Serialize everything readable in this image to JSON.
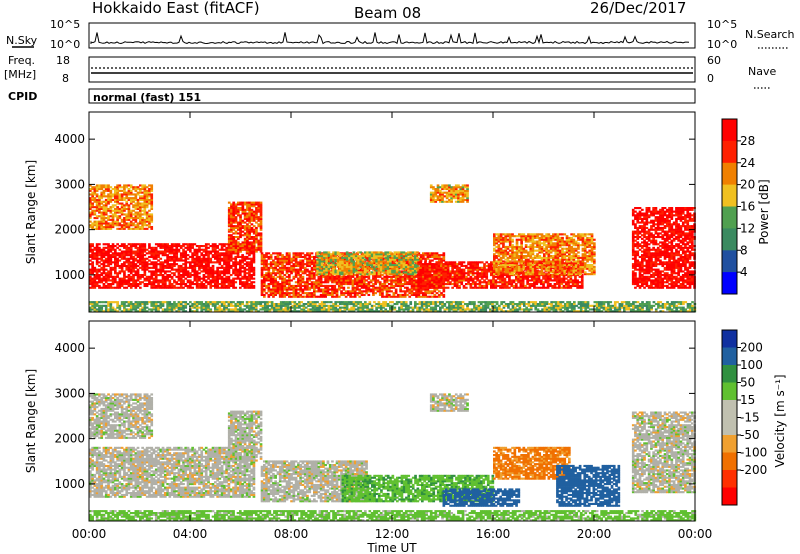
{
  "header": {
    "station": "Hokkaido East (fitACF)",
    "beam": "Beam 08",
    "date": "26/Dec/2017"
  },
  "status_panels": {
    "nsky_label": "N.Sky",
    "nsearch_label": "N.Search",
    "noise_ticks": [
      "10^5",
      "10^0"
    ],
    "freq_label": "Freq.",
    "freq_unit": "[MHz]",
    "freq_ticks": [
      "18",
      "8"
    ],
    "nave_label": "Nave",
    "nave_ticks": [
      "60",
      "0"
    ],
    "cpid_label": "CPID",
    "cpid_value": "normal (fast) 151"
  },
  "colors": {
    "power_scale": [
      "#0000ff",
      "#2050a0",
      "#3a8a60",
      "#50a050",
      "#f0c020",
      "#f08000",
      "#ff2000",
      "#ff0000"
    ],
    "velocity_scale": [
      "#1030a0",
      "#2060a0",
      "#309040",
      "#60c030",
      "#c0c0b0",
      "#c0c0b0",
      "#f0a030",
      "#f07000",
      "#ff3000",
      "#ff0000"
    ],
    "ground_scatter": "#b0b0a8"
  },
  "chart_data": [
    {
      "type": "heatmap",
      "panel": "power",
      "ylabel": "Slant Range [km]",
      "ylim": [
        180,
        4600
      ],
      "yticks": [
        "1000",
        "2000",
        "3000",
        "4000"
      ],
      "xticks": [
        "00:00",
        "04:00",
        "08:00",
        "12:00",
        "16:00",
        "20:00",
        "00:00"
      ],
      "colorbar_label": "Power [dB]",
      "colorbar_ticks": [
        "4",
        "8",
        "12",
        "16",
        "20",
        "24",
        "28"
      ],
      "regions": [
        {
          "t0": 0.0,
          "t1": 6.5,
          "r0": 700,
          "r1": 1700,
          "value_db": 30
        },
        {
          "t0": 0.0,
          "t1": 2.5,
          "r0": 2000,
          "r1": 3000,
          "value_db": 22
        },
        {
          "t0": 5.5,
          "t1": 6.8,
          "r0": 1500,
          "r1": 2600,
          "value_db": 26
        },
        {
          "t0": 6.8,
          "t1": 14.0,
          "r0": 500,
          "r1": 1500,
          "value_db": 26
        },
        {
          "t0": 9.0,
          "t1": 13.0,
          "r0": 1000,
          "r1": 1500,
          "value_db": 18
        },
        {
          "t0": 13.0,
          "t1": 19.5,
          "r0": 700,
          "r1": 1300,
          "value_db": 28
        },
        {
          "t0": 16.0,
          "t1": 20.0,
          "r0": 1000,
          "r1": 1900,
          "value_db": 22
        },
        {
          "t0": 13.5,
          "t1": 15.0,
          "r0": 2600,
          "r1": 3000,
          "value_db": 20
        },
        {
          "t0": 21.5,
          "t1": 24.0,
          "r0": 700,
          "r1": 2500,
          "value_db": 30
        },
        {
          "t0": 0.0,
          "t1": 24.0,
          "r0": 180,
          "r1": 400,
          "value_db": 14
        }
      ]
    },
    {
      "type": "heatmap",
      "panel": "velocity",
      "ylabel": "Slant Range [km]",
      "ylim": [
        180,
        4600
      ],
      "yticks": [
        "1000",
        "2000",
        "3000",
        "4000"
      ],
      "xticks": [
        "00:00",
        "04:00",
        "08:00",
        "12:00",
        "16:00",
        "20:00",
        "00:00"
      ],
      "xlabel": "Time UT",
      "colorbar_label": "Velocity [m s⁻¹]",
      "colorbar_ticks": [
        "200",
        "100",
        "50",
        "15",
        "-15",
        "-50",
        "-100",
        "-200"
      ],
      "regions": [
        {
          "t0": 0.0,
          "t1": 6.5,
          "r0": 700,
          "r1": 1800,
          "value_ms": 0
        },
        {
          "t0": 0.0,
          "t1": 2.5,
          "r0": 2000,
          "r1": 3000,
          "value_ms": 0
        },
        {
          "t0": 5.5,
          "t1": 6.8,
          "r0": 1500,
          "r1": 2600,
          "value_ms": 0
        },
        {
          "t0": 6.8,
          "t1": 11.0,
          "r0": 600,
          "r1": 1500,
          "value_ms": 0
        },
        {
          "t0": 10.0,
          "t1": 16.0,
          "r0": 600,
          "r1": 1200,
          "value_ms": 40
        },
        {
          "t0": 14.0,
          "t1": 17.0,
          "r0": 500,
          "r1": 900,
          "value_ms": 120
        },
        {
          "t0": 16.0,
          "t1": 19.0,
          "r0": 1100,
          "r1": 1800,
          "value_ms": -60
        },
        {
          "t0": 18.5,
          "t1": 21.0,
          "r0": 500,
          "r1": 1400,
          "value_ms": 150
        },
        {
          "t0": 13.5,
          "t1": 15.0,
          "r0": 2600,
          "r1": 3000,
          "value_ms": 0
        },
        {
          "t0": 21.5,
          "t1": 24.0,
          "r0": 800,
          "r1": 2600,
          "value_ms": 0
        },
        {
          "t0": 0.0,
          "t1": 24.0,
          "r0": 180,
          "r1": 400,
          "value_ms": 30
        }
      ]
    }
  ]
}
